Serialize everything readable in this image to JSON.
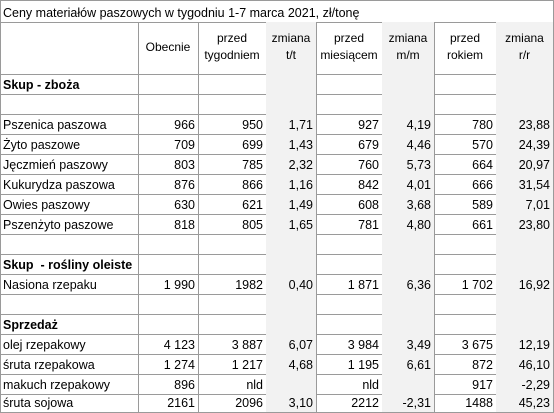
{
  "title": "Ceny materiałów paszowych w tygodniu 1-7 marca 2021, zł/tonę",
  "headers": [
    "Obecnie",
    "przed tygodniem",
    "zmiana t/t",
    "przed miesiącem",
    "zmiana m/m",
    "przed rokiem",
    "zmiana r/r"
  ],
  "sections": [
    {
      "title": "Skup - zboża",
      "rows": [
        [
          "Pszenica paszowa",
          "966",
          "950",
          "1,71",
          "927",
          "4,19",
          "780",
          "23,88"
        ],
        [
          "Żyto paszowe",
          "709",
          "699",
          "1,43",
          "679",
          "4,46",
          "570",
          "24,39"
        ],
        [
          "Jęczmień paszowy",
          "803",
          "785",
          "2,32",
          "760",
          "5,73",
          "664",
          "20,97"
        ],
        [
          "Kukurydza paszowa",
          "876",
          "866",
          "1,16",
          "842",
          "4,01",
          "666",
          "31,54"
        ],
        [
          "Owies paszowy",
          "630",
          "621",
          "1,49",
          "608",
          "3,68",
          "589",
          "7,01"
        ],
        [
          "Pszenżyto paszowe",
          "818",
          "805",
          "1,65",
          "781",
          "4,80",
          "661",
          "23,80"
        ]
      ]
    },
    {
      "title": "Skup  - rośliny oleiste",
      "rows": [
        [
          "Nasiona rzepaku",
          "1 990",
          "1982",
          "0,40",
          "1 871",
          "6,36",
          "1 702",
          "16,92"
        ]
      ]
    },
    {
      "title": "Sprzedaż",
      "rows": [
        [
          "olej rzepakowy",
          "4 123",
          "3 887",
          "6,07",
          "3 984",
          "3,49",
          "3 675",
          "12,19"
        ],
        [
          "śruta rzepakowa",
          "1 274",
          "1 217",
          "4,68",
          "1 195",
          "6,61",
          "872",
          "46,10"
        ],
        [
          "makuch rzepakowy",
          "896",
          "nld",
          null,
          "nld",
          null,
          "917",
          "-2,29"
        ],
        [
          "śruta sojowa",
          "2161",
          "2096",
          "3,10",
          "2212",
          "-2,31",
          "1488",
          "45,23"
        ]
      ]
    }
  ]
}
